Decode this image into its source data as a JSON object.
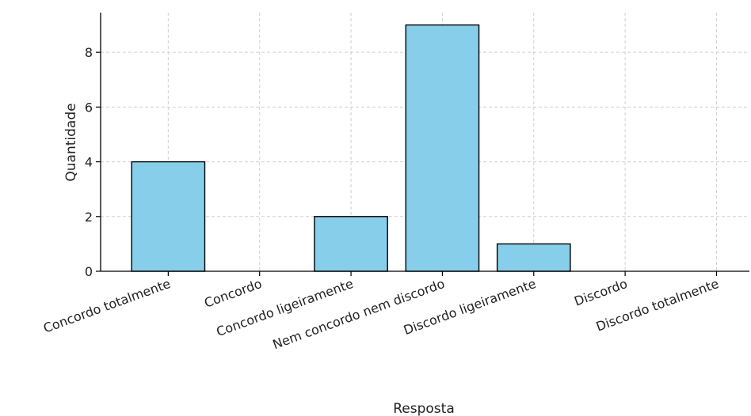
{
  "chart_data": {
    "type": "bar",
    "title": "",
    "xlabel": "Resposta",
    "ylabel": "Quantidade",
    "categories": [
      "Concordo totalmente",
      "Concordo",
      "Concordo ligeiramente",
      "Nem concordo nem discordo",
      "Discordo ligeiramente",
      "Discordo",
      "Discordo totalmente"
    ],
    "values": [
      4,
      0,
      2,
      9,
      1,
      0,
      0
    ],
    "ylim": [
      0,
      9.45
    ],
    "yticks": [
      0,
      2,
      4,
      6,
      8
    ],
    "grid": true,
    "legend": "none",
    "colors": {
      "bar_fill": "#87CEEB",
      "bar_edge": "#000000",
      "grid": "#d0d0d0",
      "axis": "#000000"
    }
  }
}
